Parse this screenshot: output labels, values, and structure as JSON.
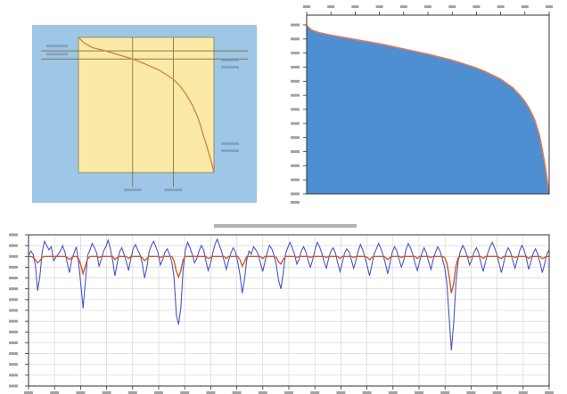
{
  "chart_data": [
    {
      "type": "line",
      "panel": "schematic",
      "background_color": "#9ec6e6",
      "plot_color": "#fbe9a8",
      "line_color": "#d08a3c",
      "grid": false,
      "labels_legible": false,
      "x": [
        0,
        4,
        10,
        20,
        30,
        40,
        50,
        60,
        70,
        75,
        80,
        84,
        88,
        90,
        92,
        94,
        96,
        98,
        99,
        100
      ],
      "values": [
        1.0,
        0.96,
        0.925,
        0.9,
        0.87,
        0.84,
        0.8,
        0.755,
        0.69,
        0.64,
        0.57,
        0.5,
        0.41,
        0.35,
        0.28,
        0.22,
        0.15,
        0.08,
        0.04,
        0.0
      ],
      "verticals_x": [
        40,
        70
      ],
      "horizontals_y": [
        0.9,
        0.84
      ],
      "xlim": [
        0,
        100
      ],
      "ylim": [
        0,
        1
      ]
    },
    {
      "type": "area",
      "panel": "duration-curve",
      "fill_color": "#4d8fd1",
      "edge_color": "#e07b5a",
      "grid": false,
      "x_axis_position": "top",
      "labels_legible": false,
      "x": [
        0,
        2,
        5,
        10,
        20,
        30,
        40,
        50,
        60,
        70,
        75,
        80,
        85,
        88,
        90,
        92,
        94,
        96,
        97,
        98,
        99,
        100
      ],
      "values": [
        0.975,
        0.95,
        0.935,
        0.92,
        0.895,
        0.87,
        0.84,
        0.81,
        0.775,
        0.73,
        0.7,
        0.665,
        0.615,
        0.57,
        0.535,
        0.49,
        0.43,
        0.34,
        0.27,
        0.19,
        0.1,
        0.0
      ],
      "xlim": [
        0,
        100
      ],
      "ylim": [
        0,
        1
      ]
    },
    {
      "type": "line",
      "panel": "time-series",
      "grid": true,
      "labels_legible": false,
      "xlim": [
        0,
        100
      ],
      "ylim": [
        -12,
        2
      ],
      "series": [
        {
          "color": "#4b55c4",
          "values": [
            0.1,
            0.5,
            0.2,
            -0.8,
            -3.2,
            -1.8,
            0.4,
            1.4,
            1.0,
            0.6,
            0.9,
            -0.4,
            -0.1,
            0.2,
            0.5,
            1.0,
            0.4,
            -0.6,
            -1.5,
            -0.3,
            0.3,
            0.9,
            -0.5,
            -2.6,
            -4.8,
            -2.3,
            0.1,
            0.6,
            1.2,
            0.8,
            0.3,
            -0.9,
            -0.3,
            0.5,
            0.9,
            1.5,
            0.7,
            -0.4,
            -1.8,
            -0.6,
            0.4,
            0.8,
            0.2,
            -0.5,
            -1.3,
            -0.2,
            0.7,
            1.1,
            0.6,
            0.2,
            -0.6,
            -2.0,
            -1.1,
            0.4,
            1.0,
            1.4,
            0.9,
            0.3,
            -0.8,
            -0.3,
            0.4,
            0.7,
            0.2,
            -0.5,
            -1.9,
            -5.4,
            -6.3,
            -4.7,
            -1.2,
            0.6,
            1.3,
            0.8,
            0.2,
            -0.6,
            -0.2,
            0.5,
            1.0,
            0.6,
            -0.4,
            -1.3,
            -0.7,
            0.3,
            1.1,
            1.6,
            1.0,
            0.4,
            -0.4,
            -1.2,
            -0.4,
            0.3,
            0.8,
            0.4,
            -0.5,
            -1.7,
            -3.4,
            -2.1,
            -0.3,
            0.5,
            0.2,
            0.9,
            0.6,
            0.2,
            -0.6,
            -1.4,
            -0.5,
            0.4,
            1.0,
            0.7,
            0.1,
            -0.8,
            -2.2,
            -3.0,
            -1.6,
            0.2,
            0.8,
            1.3,
            0.8,
            0.2,
            -0.7,
            -0.3,
            0.5,
            0.9,
            0.4,
            -0.4,
            -1.0,
            -0.3,
            0.6,
            1.3,
            0.9,
            0.3,
            -0.5,
            -1.1,
            -0.2,
            0.5,
            0.8,
            0.3,
            -0.6,
            -1.4,
            -0.6,
            0.3,
            0.7,
            0.4,
            -0.3,
            -1.1,
            -0.4,
            0.5,
            1.1,
            0.6,
            -0.1,
            -0.9,
            -1.8,
            -0.8,
            0.2,
            0.7,
            1.2,
            0.7,
            0.1,
            -0.7,
            -1.6,
            -0.6,
            0.4,
            0.9,
            0.5,
            -0.3,
            -1.0,
            -0.4,
            0.6,
            1.2,
            0.8,
            0.2,
            -0.6,
            -1.3,
            -0.5,
            0.3,
            0.8,
            0.3,
            -0.5,
            -1.2,
            -0.3,
            0.4,
            0.9,
            0.5,
            -0.2,
            -1.0,
            -2.4,
            -5.6,
            -8.7,
            -6.2,
            -2.5,
            -0.4,
            0.5,
            1.0,
            0.6,
            0.0,
            -0.8,
            -0.3,
            0.4,
            0.8,
            0.3,
            -0.6,
            -1.4,
            -0.5,
            0.3,
            0.9,
            1.3,
            0.8,
            0.2,
            -0.7,
            -1.5,
            -0.6,
            0.3,
            0.8,
            0.4,
            -0.4,
            -1.1,
            -0.3,
            0.5,
            1.0,
            0.6,
            -0.2,
            -1.2,
            -0.5,
            0.3,
            0.7,
            0.2,
            -0.6,
            -1.5,
            -0.7,
            0.2,
            0.6
          ]
        },
        {
          "color": "#d2582c",
          "values": [
            0.0,
            0.0,
            -0.1,
            -0.3,
            -0.6,
            -0.4,
            -0.1,
            0.0,
            0.0,
            0.0,
            0.0,
            0.0,
            0.0,
            0.0,
            0.0,
            0.0,
            0.0,
            -0.1,
            -0.3,
            -0.1,
            0.0,
            0.0,
            -0.2,
            -0.8,
            -1.6,
            -0.9,
            -0.2,
            0.0,
            0.0,
            0.0,
            0.0,
            -0.1,
            0.0,
            0.0,
            0.0,
            0.0,
            0.0,
            0.0,
            -0.3,
            -0.1,
            0.0,
            0.0,
            0.0,
            0.0,
            -0.2,
            0.0,
            0.0,
            0.0,
            0.0,
            0.0,
            -0.1,
            -0.4,
            -0.2,
            0.0,
            0.0,
            0.0,
            0.0,
            0.0,
            -0.1,
            0.0,
            0.0,
            0.0,
            0.0,
            0.0,
            -0.4,
            -1.4,
            -1.9,
            -1.3,
            -0.3,
            0.0,
            0.0,
            0.0,
            0.0,
            0.0,
            0.0,
            0.0,
            0.0,
            0.0,
            0.0,
            -0.2,
            -0.1,
            0.0,
            0.0,
            0.0,
            0.0,
            0.0,
            0.0,
            -0.2,
            0.0,
            0.0,
            0.0,
            0.0,
            0.0,
            -0.3,
            -0.9,
            -0.5,
            0.0,
            0.0,
            0.0,
            0.0,
            0.0,
            0.0,
            0.0,
            -0.2,
            0.0,
            0.0,
            0.0,
            0.0,
            0.0,
            -0.1,
            -0.5,
            -0.7,
            -0.3,
            0.0,
            0.0,
            0.0,
            0.0,
            0.0,
            -0.1,
            0.0,
            0.0,
            0.0,
            0.0,
            0.0,
            -0.1,
            0.0,
            0.0,
            0.0,
            0.0,
            0.0,
            0.0,
            -0.1,
            0.0,
            0.0,
            0.0,
            0.0,
            0.0,
            -0.2,
            0.0,
            0.0,
            0.0,
            0.0,
            0.0,
            -0.1,
            0.0,
            0.0,
            0.0,
            0.0,
            0.0,
            -0.1,
            -0.3,
            -0.1,
            0.0,
            0.0,
            0.0,
            0.0,
            0.0,
            -0.1,
            -0.3,
            -0.1,
            0.0,
            0.0,
            0.0,
            0.0,
            -0.1,
            0.0,
            0.0,
            0.0,
            0.0,
            0.0,
            0.0,
            -0.2,
            0.0,
            0.0,
            0.0,
            0.0,
            0.0,
            -0.1,
            0.0,
            0.0,
            0.0,
            0.0,
            0.0,
            -0.1,
            -0.6,
            -1.8,
            -3.4,
            -2.5,
            -0.9,
            -0.1,
            0.0,
            0.0,
            0.0,
            0.0,
            -0.1,
            0.0,
            0.0,
            0.0,
            0.0,
            0.0,
            -0.2,
            0.0,
            0.0,
            0.0,
            0.0,
            0.0,
            0.0,
            -0.1,
            -0.2,
            0.0,
            0.0,
            0.0,
            0.0,
            0.0,
            -0.1,
            0.0,
            0.0,
            0.0,
            0.0,
            0.0,
            -0.2,
            0.0,
            0.0,
            0.0,
            0.0,
            0.0,
            -0.2,
            -0.1,
            0.0,
            0.0
          ]
        }
      ]
    }
  ]
}
